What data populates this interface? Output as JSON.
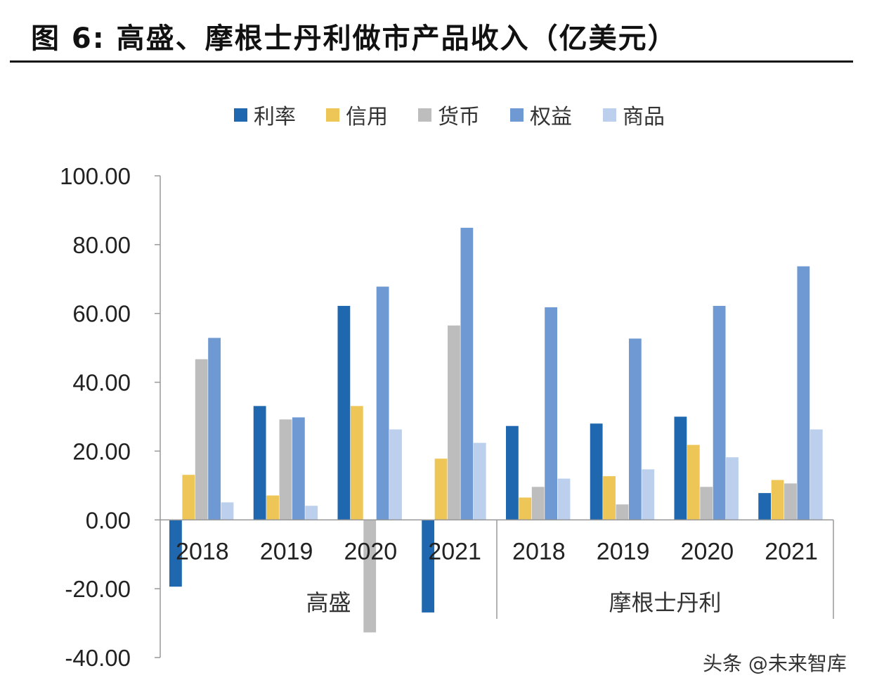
{
  "title": "图 6:  高盛、摩根士丹利做市产品收入（亿美元）",
  "watermark": "头条 @未来智库",
  "chart_data": {
    "type": "bar",
    "title": "图 6:  高盛、摩根士丹利做市产品收入（亿美元）",
    "ylim": [
      -40,
      100
    ],
    "yticks": [
      "100.00",
      "80.00",
      "60.00",
      "40.00",
      "20.00",
      "0.00",
      "-20.00",
      "-40.00"
    ],
    "ytick_values": [
      100,
      80,
      60,
      40,
      20,
      0,
      -20,
      -40
    ],
    "grid": false,
    "legend_position": "top",
    "groups": [
      {
        "name": "高盛",
        "categories": [
          "2018",
          "2019",
          "2020",
          "2021"
        ]
      },
      {
        "name": "摩根士丹利",
        "categories": [
          "2018",
          "2019",
          "2020",
          "2021"
        ]
      }
    ],
    "categories": [
      "2018",
      "2019",
      "2020",
      "2021",
      "2018",
      "2019",
      "2020",
      "2021"
    ],
    "series": [
      {
        "name": "利率",
        "color": "#1F67AE",
        "values": [
          -19.4,
          33.1,
          62.2,
          -26.9,
          27.3,
          28.0,
          30.0,
          7.8
        ]
      },
      {
        "name": "信用",
        "color": "#EEC657",
        "values": [
          13.1,
          7.1,
          33.1,
          17.8,
          6.5,
          12.7,
          21.8,
          11.6
        ]
      },
      {
        "name": "货币",
        "color": "#BDBDBD",
        "values": [
          46.7,
          29.2,
          -32.7,
          56.5,
          9.6,
          4.5,
          9.6,
          10.6
        ]
      },
      {
        "name": "权益",
        "color": "#6F99D2",
        "values": [
          52.9,
          29.8,
          67.8,
          84.9,
          61.8,
          52.7,
          62.2,
          73.7
        ]
      },
      {
        "name": "商品",
        "color": "#BCD0EE",
        "values": [
          5.1,
          4.1,
          26.3,
          22.4,
          12.0,
          14.7,
          18.2,
          26.3
        ]
      }
    ]
  }
}
